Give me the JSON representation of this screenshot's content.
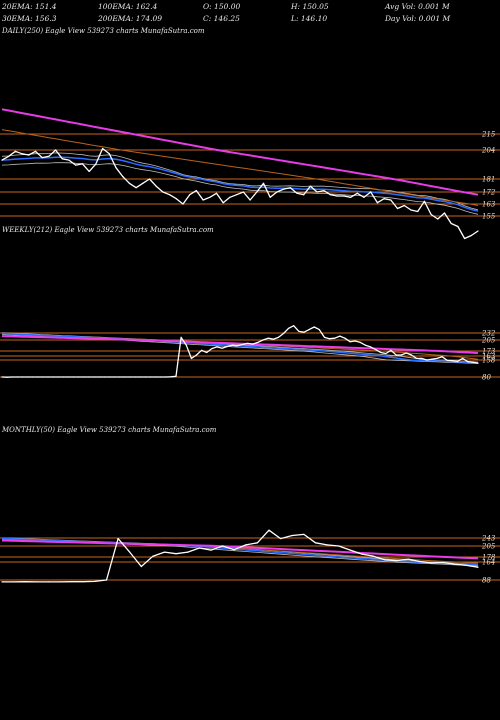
{
  "header": {
    "row1": [
      "20EMA: 151.4",
      "100EMA: 162.4",
      "O: 150.00",
      "H: 150.05",
      "Avg Vol: 0.001 M"
    ],
    "row2": [
      "30EMA: 156.3",
      "200EMA: 174.09",
      "C: 146.25",
      "L: 146.10",
      "Day Vol: 0.001 M"
    ]
  },
  "colors": {
    "price": "#ffffff",
    "ema_blue": "#2a6cff",
    "ema_magenta": "#e83ce8",
    "ema_orange": "#b8621e",
    "ema_grey": "#bbbbbb",
    "level_line": "#c8641e",
    "background": "#000000"
  },
  "panels": [
    {
      "title": "DAILY(250) Eagle   View  539273 charts MunafaSutra.com",
      "levels": [
        "215",
        "204",
        "181",
        "172",
        "163",
        "155"
      ]
    },
    {
      "title": "WEEKLY(212) Eagle   View  539273 charts MunafaSutra.com",
      "levels": [
        "232",
        "205",
        "173",
        "163",
        "158",
        "80"
      ]
    },
    {
      "title": "MONTHLY(50) Eagle   View  539273 charts MunafaSutra.com",
      "levels": [
        "243",
        "205",
        "178",
        "164",
        "88"
      ]
    }
  ],
  "chart_data": [
    {
      "type": "line",
      "timeframe": "DAILY(250)",
      "y_axis_levels": [
        215,
        204,
        181,
        172,
        163,
        155
      ],
      "series": [
        {
          "values": [
            196,
            199,
            203,
            201,
            200,
            203,
            198,
            199,
            204,
            197,
            196,
            192,
            193,
            187,
            193,
            205,
            201,
            190,
            183,
            178,
            175,
            178,
            181,
            176,
            172,
            170,
            167,
            163,
            170,
            173,
            166,
            168,
            171,
            164,
            168,
            170,
            172,
            166,
            172,
            178,
            168,
            172,
            174,
            175,
            171,
            170,
            176,
            172,
            173,
            170,
            169,
            169,
            168,
            171,
            168,
            172,
            164,
            167,
            166,
            160,
            162,
            159,
            158,
            165,
            156,
            153,
            157,
            150,
            148,
            140,
            142,
            145
          ]
        }
      ]
    },
    {
      "type": "line",
      "timeframe": "WEEKLY(212)",
      "y_axis_levels": [
        232,
        205,
        173,
        163,
        158,
        80
      ],
      "series": [
        {
          "values": [
            80,
            79,
            80,
            80,
            80,
            80,
            80,
            80,
            80,
            80,
            80,
            80,
            80,
            80,
            80,
            80,
            80,
            80,
            80,
            80,
            80,
            80,
            80,
            80,
            80,
            80,
            80,
            80,
            80,
            80,
            80,
            80,
            80,
            81,
            83,
            215,
            190,
            160,
            165,
            175,
            170,
            180,
            185,
            181,
            186,
            190,
            188,
            192,
            195,
            193,
            198,
            205,
            212,
            208,
            215,
            230,
            250,
            260,
            238,
            235,
            245,
            255,
            245,
            215,
            210,
            212,
            220,
            212,
            200,
            202,
            198,
            190,
            185,
            177,
            170,
            168,
            175,
            165,
            165,
            169,
            165,
            160,
            160,
            158,
            159,
            160,
            162,
            156,
            155,
            152,
            160,
            150,
            148,
            144
          ]
        }
      ]
    },
    {
      "type": "line",
      "timeframe": "MONTHLY(50)",
      "y_axis_levels": [
        243,
        205,
        178,
        164,
        88
      ],
      "series": [
        {
          "values": [
            80,
            80,
            81,
            80,
            80,
            80,
            81,
            81,
            82,
            88,
            240,
            190,
            145,
            180,
            190,
            186,
            190,
            200,
            195,
            205,
            196,
            210,
            220,
            280,
            240,
            255,
            260,
            220,
            210,
            205,
            195,
            185,
            180,
            170,
            168,
            172,
            165,
            160,
            162,
            155,
            150,
            142
          ]
        }
      ]
    }
  ]
}
